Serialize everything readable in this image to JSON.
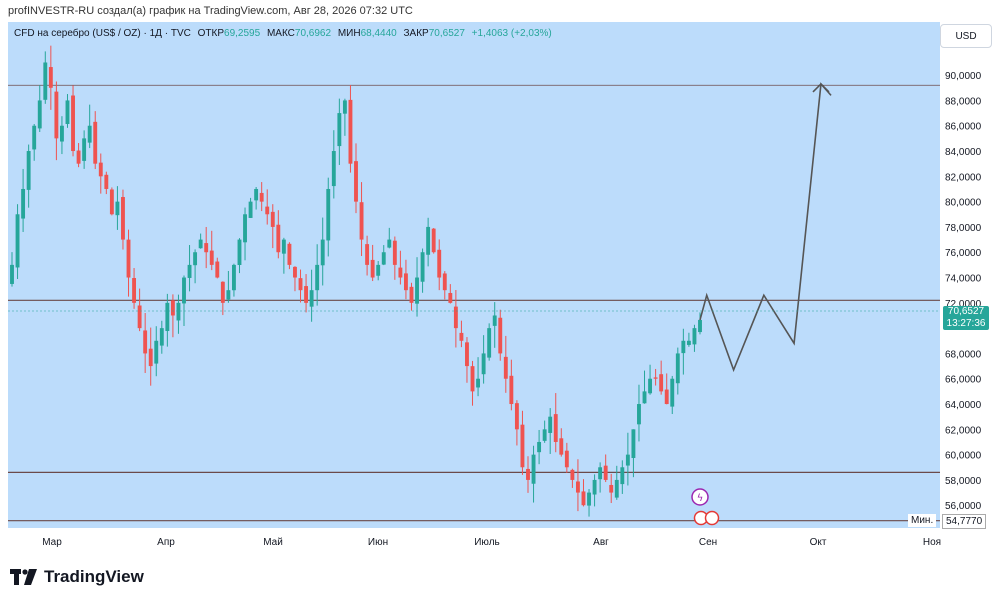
{
  "header": {
    "text": "profINVESTR-RU создал(а) график на TradingView.com, Авг 28, 2026 07:32 UTC"
  },
  "info": {
    "symbol": "CFD на серебро (US$ / OZ) · 1Д · TVC",
    "open_label": "ОТКР",
    "open": "69,2595",
    "high_label": "МАКС",
    "high": "70,6962",
    "low_label": "МИН",
    "low": "68,4440",
    "close_label": "ЗАКР",
    "close": "70,6527",
    "change": "+1,4063 (+2,03%)"
  },
  "currency_button": "USD",
  "price_badge": {
    "price": "70,6527",
    "timer": "13:27:36"
  },
  "min_marker": {
    "label": "Мин.",
    "value": "54,7770"
  },
  "logo": {
    "text": "TradingView"
  },
  "colors": {
    "background": "#bcdcfb",
    "bull": "#26a69a",
    "bear": "#ef5350",
    "level_line": "#6b4a4a",
    "forecast": "#555555"
  },
  "chart_data": {
    "type": "candlestick",
    "y_axis_labels": [
      "90,0000",
      "88,0000",
      "86,0000",
      "84,0000",
      "82,0000",
      "80,0000",
      "78,0000",
      "76,0000",
      "74,0000",
      "72,0000",
      "70,6527",
      "68,0000",
      "66,0000",
      "64,0000",
      "62,0000",
      "60,0000",
      "58,0000",
      "56,0000",
      "54,7770"
    ],
    "y_ticks": [
      90,
      88,
      86,
      84,
      82,
      80,
      78,
      76,
      74,
      72,
      68,
      66,
      64,
      62,
      60,
      58,
      56
    ],
    "ylim": [
      54.2,
      94.2
    ],
    "x_labels": [
      "Мар",
      "Апр",
      "Май",
      "Июн",
      "Июль",
      "Авг",
      "Сен",
      "Окт",
      "Ноя"
    ],
    "horizontal_levels": [
      89.2,
      72.2,
      58.6,
      54.78
    ],
    "current_price": 70.65,
    "close_series": [
      75,
      79,
      81,
      84,
      86,
      88,
      91,
      89,
      85,
      86,
      88,
      84,
      83,
      85,
      86,
      83,
      82,
      81,
      79,
      80,
      77,
      74,
      72,
      70,
      68,
      67,
      69,
      70,
      72,
      71,
      72,
      74,
      75,
      76,
      77,
      76,
      75,
      74,
      72,
      73,
      75,
      77,
      79,
      80,
      81,
      80,
      79,
      78,
      76,
      77,
      75,
      74,
      73,
      72,
      73,
      75,
      77,
      81,
      84,
      87,
      88,
      83,
      80,
      77,
      75,
      74,
      75,
      76,
      77,
      75,
      74,
      73,
      72,
      74,
      76,
      78,
      76,
      74,
      73,
      72,
      70,
      69,
      67,
      65,
      66,
      68,
      70,
      71,
      68,
      66,
      64,
      62,
      59,
      58,
      60,
      61,
      62,
      63,
      61,
      60,
      59,
      58,
      57,
      56,
      57,
      58,
      59,
      58,
      57,
      58,
      59,
      60,
      62,
      64,
      65,
      66,
      66,
      65,
      64,
      66,
      68,
      69,
      69,
      70,
      70.65
    ],
    "forecast_path": [
      [
        70.65,
        0
      ],
      [
        72.6,
        4
      ],
      [
        66.7,
        20
      ],
      [
        72.6,
        38
      ],
      [
        68.8,
        56
      ],
      [
        89.3,
        72
      ],
      [
        88.4,
        78
      ]
    ]
  }
}
